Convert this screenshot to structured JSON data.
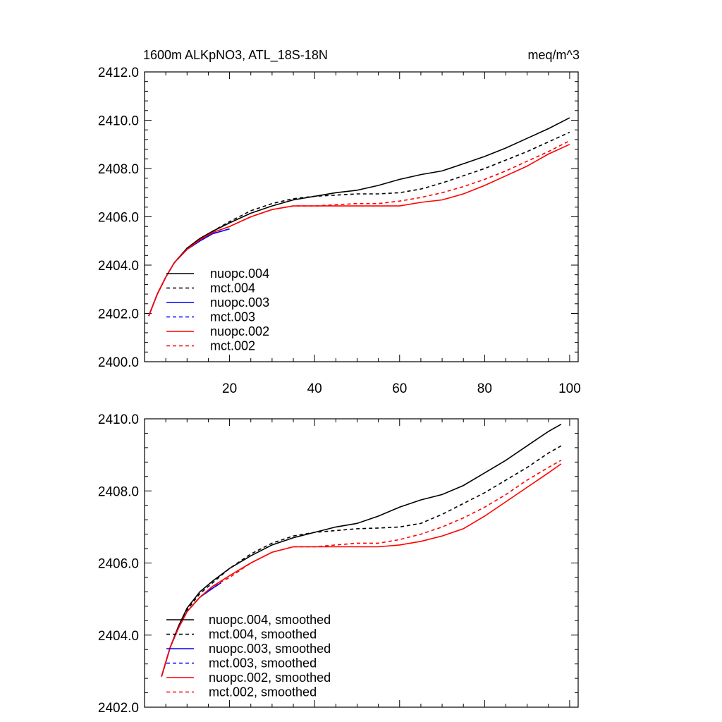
{
  "chart_data": [
    {
      "type": "line",
      "title_left": "1600m ALKpNO3, ATL_18S-18N",
      "title_right": "meq/m^3",
      "xlim": [
        0,
        102
      ],
      "ylim": [
        2400.0,
        2412.0
      ],
      "xticks": [
        20,
        40,
        60,
        80,
        100
      ],
      "yticks": [
        2400.0,
        2402.0,
        2404.0,
        2406.0,
        2408.0,
        2410.0,
        2412.0
      ],
      "ytick_labels": [
        "2400.0",
        "2402.0",
        "2404.0",
        "2406.0",
        "2408.0",
        "2410.0",
        "2412.0"
      ],
      "legend_position": "lower-left",
      "series": [
        {
          "name": "nuopc.004",
          "color": "#000000",
          "dash": "solid",
          "x": [
            1,
            3,
            5,
            7,
            10,
            13,
            16,
            20,
            25,
            30,
            35,
            40,
            45,
            50,
            55,
            60,
            65,
            70,
            75,
            80,
            85,
            90,
            95,
            100
          ],
          "y": [
            2401.9,
            2402.8,
            2403.5,
            2404.1,
            2404.7,
            2405.1,
            2405.4,
            2405.75,
            2406.15,
            2406.45,
            2406.7,
            2406.85,
            2407.0,
            2407.1,
            2407.3,
            2407.55,
            2407.75,
            2407.9,
            2408.2,
            2408.5,
            2408.85,
            2409.25,
            2409.65,
            2410.1
          ]
        },
        {
          "name": "mct.004",
          "color": "#000000",
          "dash": "dashed",
          "x": [
            1,
            3,
            5,
            7,
            10,
            13,
            16,
            20,
            25,
            30,
            35,
            40,
            45,
            50,
            55,
            60,
            65,
            70,
            75,
            80,
            85,
            90,
            95,
            100
          ],
          "y": [
            2401.9,
            2402.8,
            2403.5,
            2404.1,
            2404.7,
            2405.1,
            2405.4,
            2405.8,
            2406.25,
            2406.55,
            2406.75,
            2406.85,
            2406.9,
            2406.95,
            2406.95,
            2407.0,
            2407.15,
            2407.4,
            2407.7,
            2408.0,
            2408.35,
            2408.7,
            2409.1,
            2409.5
          ]
        },
        {
          "name": "nuopc.003",
          "color": "#0000ff",
          "dash": "solid",
          "x": [
            1,
            3,
            5,
            7,
            10,
            13,
            16,
            20
          ],
          "y": [
            2401.9,
            2402.8,
            2403.5,
            2404.1,
            2404.65,
            2405.0,
            2405.3,
            2405.5
          ]
        },
        {
          "name": "mct.003",
          "color": "#0000ff",
          "dash": "dashed",
          "x": [
            1,
            3,
            5,
            7,
            10,
            13,
            16,
            20
          ],
          "y": [
            2401.9,
            2402.8,
            2403.5,
            2404.1,
            2404.65,
            2405.0,
            2405.3,
            2405.5
          ]
        },
        {
          "name": "nuopc.002",
          "color": "#ff0000",
          "dash": "solid",
          "x": [
            1,
            3,
            5,
            7,
            10,
            13,
            16,
            20,
            25,
            30,
            35,
            40,
            45,
            50,
            55,
            60,
            65,
            70,
            75,
            80,
            85,
            90,
            95,
            100
          ],
          "y": [
            2401.9,
            2402.8,
            2403.5,
            2404.1,
            2404.65,
            2405.05,
            2405.35,
            2405.6,
            2406.0,
            2406.3,
            2406.45,
            2406.45,
            2406.45,
            2406.45,
            2406.45,
            2406.45,
            2406.6,
            2406.7,
            2406.95,
            2407.3,
            2407.7,
            2408.1,
            2408.6,
            2409.0
          ]
        },
        {
          "name": "mct.002",
          "color": "#ff0000",
          "dash": "dashed",
          "x": [
            1,
            3,
            5,
            7,
            10,
            13,
            16,
            20,
            25,
            30,
            35,
            40,
            45,
            50,
            55,
            60,
            65,
            70,
            75,
            80,
            85,
            90,
            95,
            100
          ],
          "y": [
            2401.9,
            2402.8,
            2403.5,
            2404.1,
            2404.65,
            2405.05,
            2405.35,
            2405.6,
            2406.0,
            2406.3,
            2406.45,
            2406.45,
            2406.5,
            2406.55,
            2406.55,
            2406.65,
            2406.8,
            2407.0,
            2407.25,
            2407.55,
            2407.9,
            2408.3,
            2408.7,
            2409.15
          ]
        }
      ]
    },
    {
      "type": "line",
      "xlim": [
        0,
        102
      ],
      "ylim": [
        2402.0,
        2410.0
      ],
      "xticks": [
        20,
        40,
        60,
        80,
        100
      ],
      "yticks": [
        2402.0,
        2404.0,
        2406.0,
        2408.0,
        2410.0
      ],
      "ytick_labels": [
        "2402.0",
        "2404.0",
        "2406.0",
        "2408.0",
        "2410.0"
      ],
      "legend_position": "lower-left",
      "series": [
        {
          "name": "nuopc.004, smoothed",
          "color": "#000000",
          "dash": "solid",
          "x": [
            4,
            6,
            8,
            10,
            13,
            16,
            20,
            25,
            30,
            35,
            40,
            45,
            50,
            55,
            60,
            65,
            70,
            75,
            80,
            85,
            90,
            95,
            98
          ],
          "y": [
            2402.85,
            2403.65,
            2404.25,
            2404.75,
            2405.2,
            2405.5,
            2405.85,
            2406.2,
            2406.5,
            2406.7,
            2406.85,
            2407.0,
            2407.1,
            2407.3,
            2407.55,
            2407.75,
            2407.9,
            2408.15,
            2408.5,
            2408.85,
            2409.25,
            2409.65,
            2409.85
          ]
        },
        {
          "name": "mct.004, smoothed",
          "color": "#000000",
          "dash": "dashed",
          "x": [
            4,
            6,
            8,
            10,
            13,
            16,
            20,
            25,
            30,
            35,
            40,
            45,
            50,
            55,
            60,
            65,
            70,
            75,
            80,
            85,
            90,
            95,
            98
          ],
          "y": [
            2402.85,
            2403.65,
            2404.25,
            2404.7,
            2405.15,
            2405.45,
            2405.85,
            2406.25,
            2406.55,
            2406.75,
            2406.85,
            2406.9,
            2406.95,
            2406.97,
            2407.0,
            2407.1,
            2407.35,
            2407.65,
            2407.95,
            2408.3,
            2408.65,
            2409.05,
            2409.25
          ]
        },
        {
          "name": "nuopc.003, smoothed",
          "color": "#0000ff",
          "dash": "solid",
          "x": [
            4,
            6,
            8,
            10,
            13,
            16,
            18
          ],
          "y": [
            2402.85,
            2403.65,
            2404.2,
            2404.65,
            2405.05,
            2405.3,
            2405.45
          ]
        },
        {
          "name": "mct.003, smoothed",
          "color": "#0000ff",
          "dash": "dashed",
          "x": [
            4,
            6,
            8,
            10,
            13,
            16,
            18
          ],
          "y": [
            2402.85,
            2403.65,
            2404.2,
            2404.65,
            2405.05,
            2405.3,
            2405.45
          ]
        },
        {
          "name": "nuopc.002, smoothed",
          "color": "#ff0000",
          "dash": "solid",
          "x": [
            4,
            6,
            8,
            10,
            13,
            16,
            20,
            25,
            30,
            35,
            40,
            45,
            50,
            55,
            60,
            65,
            70,
            75,
            80,
            85,
            90,
            95,
            98
          ],
          "y": [
            2402.85,
            2403.65,
            2404.2,
            2404.65,
            2405.05,
            2405.35,
            2405.65,
            2406.0,
            2406.3,
            2406.45,
            2406.45,
            2406.45,
            2406.45,
            2406.45,
            2406.5,
            2406.6,
            2406.75,
            2406.95,
            2407.3,
            2407.7,
            2408.1,
            2408.5,
            2408.75
          ]
        },
        {
          "name": "mct.002, smoothed",
          "color": "#ff0000",
          "dash": "dashed",
          "x": [
            4,
            6,
            8,
            10,
            13,
            16,
            20,
            25,
            30,
            35,
            40,
            45,
            50,
            55,
            60,
            65,
            70,
            75,
            80,
            85,
            90,
            95,
            98
          ],
          "y": [
            2402.85,
            2403.65,
            2404.2,
            2404.65,
            2405.05,
            2405.35,
            2405.6,
            2406.0,
            2406.3,
            2406.45,
            2406.45,
            2406.5,
            2406.55,
            2406.55,
            2406.65,
            2406.8,
            2407.0,
            2407.25,
            2407.55,
            2407.9,
            2408.3,
            2408.65,
            2408.85
          ]
        }
      ]
    }
  ]
}
